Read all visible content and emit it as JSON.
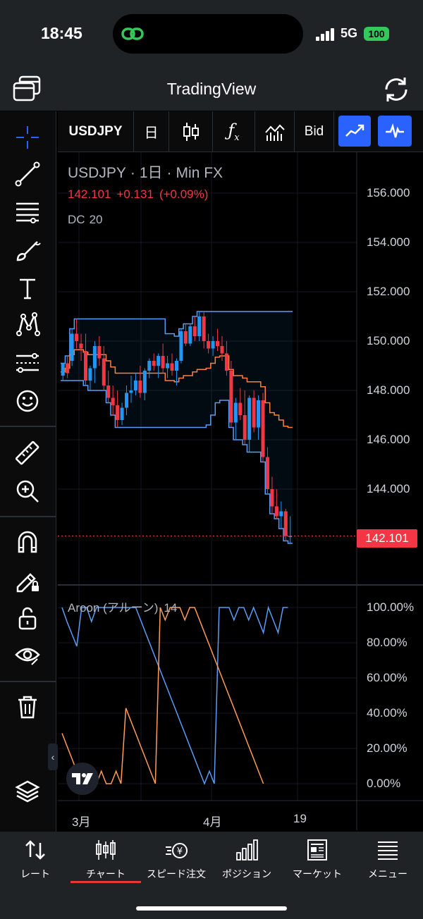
{
  "status": {
    "time": "18:45",
    "network": "5G",
    "battery": "100"
  },
  "header": {
    "title": "TradingView"
  },
  "toolbar": {
    "symbol": "USDJPY",
    "interval": "日",
    "bid": "Bid"
  },
  "chart": {
    "symbol": "USDJPY",
    "interval": "1日",
    "source": "Min FX",
    "last_price": "142.101",
    "change": "+0.131",
    "change_pct": "(+0.09%)",
    "price_tag": "142.101",
    "dc_name": "DC",
    "dc_length": "20",
    "aroon_name": "Aroon (アルーン)",
    "aroon_length": "14",
    "price_ticks": [
      "156.000",
      "154.000",
      "152.000",
      "150.000",
      "148.000",
      "146.000",
      "144.000"
    ],
    "aroon_ticks": [
      "100.00%",
      "80.00%",
      "60.00%",
      "40.00%",
      "20.00%",
      "0.00%"
    ],
    "time_ticks": [
      "3月",
      "4月",
      "19"
    ]
  },
  "nav": {
    "items": [
      {
        "label": "レート"
      },
      {
        "label": "チャート"
      },
      {
        "label": "スピード注文"
      },
      {
        "label": "ポジション"
      },
      {
        "label": "マーケット"
      },
      {
        "label": "メニュー"
      }
    ]
  },
  "colors": {
    "up": "#2196f3",
    "down": "#f23645",
    "dc_band": "#5b9cf6",
    "dc_mid": "#ff7f3f",
    "aroon_up": "#5b9cf6",
    "aroon_down": "#ff9c5a",
    "accent": "#2962ff"
  },
  "chart_data": [
    {
      "type": "candlestick",
      "title": "USDJPY · 1日 · Min FX",
      "y_range": [
        142,
        156
      ],
      "x_ticks": [
        "3月",
        "4月",
        "19"
      ],
      "candles": [
        [
          148.6,
          149.1,
          148.4,
          149.1
        ],
        [
          149.1,
          149.4,
          148.5,
          148.7
        ],
        [
          149.2,
          150.5,
          149.0,
          150.3
        ],
        [
          150.3,
          150.9,
          149.7,
          150.0
        ],
        [
          149.9,
          150.3,
          149.2,
          149.7
        ],
        [
          149.6,
          150.3,
          148.2,
          148.4
        ],
        [
          148.4,
          149.0,
          148.0,
          148.9
        ],
        [
          148.9,
          150.0,
          148.3,
          149.8
        ],
        [
          149.8,
          150.2,
          149.0,
          149.3
        ],
        [
          149.3,
          149.8,
          148.0,
          148.2
        ],
        [
          148.2,
          148.8,
          147.5,
          147.7
        ],
        [
          147.7,
          148.2,
          147.0,
          147.4
        ],
        [
          147.4,
          148.0,
          146.5,
          146.8
        ],
        [
          146.8,
          147.5,
          146.6,
          147.3
        ],
        [
          147.3,
          148.2,
          147.0,
          147.9
        ],
        [
          147.9,
          148.6,
          147.5,
          148.0
        ],
        [
          148.0,
          148.7,
          147.8,
          148.4
        ],
        [
          148.4,
          149.0,
          147.7,
          147.9
        ],
        [
          147.9,
          148.9,
          147.6,
          148.8
        ],
        [
          148.8,
          149.3,
          148.5,
          149.2
        ],
        [
          149.2,
          149.5,
          148.8,
          149.0
        ],
        [
          149.0,
          149.5,
          148.5,
          149.4
        ],
        [
          149.4,
          149.9,
          148.7,
          148.9
        ],
        [
          148.9,
          149.4,
          148.5,
          149.1
        ],
        [
          149.1,
          149.5,
          148.6,
          148.8
        ],
        [
          148.8,
          149.3,
          148.2,
          149.2
        ],
        [
          149.2,
          150.5,
          149.1,
          150.4
        ],
        [
          150.4,
          150.7,
          149.8,
          149.9
        ],
        [
          149.9,
          150.7,
          149.8,
          150.6
        ],
        [
          150.6,
          151.0,
          150.0,
          150.2
        ],
        [
          150.2,
          151.2,
          150.0,
          151.0
        ],
        [
          151.0,
          151.2,
          149.7,
          150.0
        ],
        [
          150.0,
          150.3,
          149.5,
          149.7
        ],
        [
          149.7,
          150.2,
          149.4,
          150.0
        ],
        [
          150.0,
          150.5,
          149.6,
          149.8
        ],
        [
          149.8,
          150.2,
          149.2,
          149.5
        ],
        [
          149.5,
          150.0,
          148.6,
          148.8
        ],
        [
          148.8,
          149.2,
          146.5,
          146.7
        ],
        [
          146.7,
          147.7,
          146.0,
          147.5
        ],
        [
          147.5,
          148.1,
          146.8,
          147.0
        ],
        [
          147.0,
          148.0,
          145.8,
          146.0
        ],
        [
          146.0,
          147.8,
          145.5,
          147.7
        ],
        [
          147.7,
          148.0,
          146.3,
          146.5
        ],
        [
          146.5,
          147.8,
          146.0,
          147.6
        ],
        [
          147.6,
          147.9,
          145.1,
          145.3
        ],
        [
          145.3,
          145.7,
          143.8,
          144.0
        ],
        [
          144.0,
          144.5,
          143.0,
          143.3
        ],
        [
          143.3,
          144.0,
          142.8,
          142.9
        ],
        [
          142.9,
          143.5,
          142.4,
          143.1
        ],
        [
          143.1,
          143.2,
          141.9,
          142.1
        ],
        [
          142.1,
          142.9,
          141.8,
          142.1
        ]
      ]
    },
    {
      "type": "line",
      "title": "Aroon (アルーン) 14",
      "y_range": [
        0,
        100
      ],
      "series": [
        {
          "values": [
            100,
            92,
            85,
            78,
            100,
            100,
            92,
            100,
            100,
            100,
            100,
            100,
            100,
            100,
            100,
            100,
            92.9,
            85.7,
            78.6,
            71.4,
            64.3,
            57.1,
            50,
            42.9,
            35.7,
            28.6,
            21.4,
            14.3,
            7.1,
            0,
            7.1,
            0,
            100,
            100,
            100,
            92.9,
            100,
            100,
            92.9,
            100,
            92.9,
            85.7,
            100,
            92.9,
            85.7,
            100,
            100
          ]
        },
        {
          "values": [
            28.6,
            21.4,
            14.3,
            7.1,
            0,
            0,
            0,
            0,
            7.1,
            0,
            0,
            7.1,
            0,
            42.9,
            35.7,
            28.6,
            21.4,
            14.3,
            7.1,
            0,
            100,
            92.9,
            100,
            100,
            100,
            92.9,
            100,
            100,
            92.9,
            85.7,
            78.6,
            71.4,
            64.3,
            57.1,
            50,
            42.9,
            35.7,
            28.6,
            21.4,
            14.3,
            7.1,
            0
          ]
        }
      ]
    }
  ]
}
